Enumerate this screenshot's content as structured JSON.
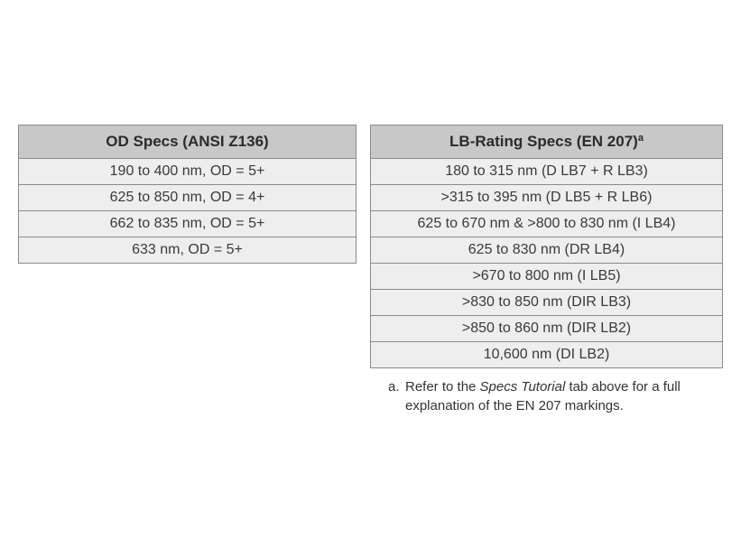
{
  "od_table": {
    "header": "OD Specs (ANSI Z136)",
    "rows": [
      "190 to 400 nm, OD = 5+",
      "625 to 850 nm, OD = 4+",
      "662 to 835 nm, OD = 5+",
      "633 nm, OD = 5+"
    ]
  },
  "lb_table": {
    "header": "LB-Rating Specs (EN 207)",
    "header_note_mark": "a",
    "rows": [
      "180 to 315 nm (D LB7 + R LB3)",
      ">315 to 395 nm (D LB5 + R LB6)",
      "625 to 670 nm & >800 to 830 nm (I LB4)",
      "625 to 830 nm (DR LB4)",
      ">670 to 800 nm (I LB5)",
      ">830 to 850 nm (DIR LB3)",
      ">850 to 860 nm (DIR LB2)",
      "10,600 nm (DI LB2)"
    ]
  },
  "footnote": {
    "letter": "a.",
    "text_before": "Refer to the ",
    "emphasis": "Specs Tutorial",
    "text_after_line1": " tab above for a full",
    "text_line2": "explanation of the EN 207 markings."
  }
}
